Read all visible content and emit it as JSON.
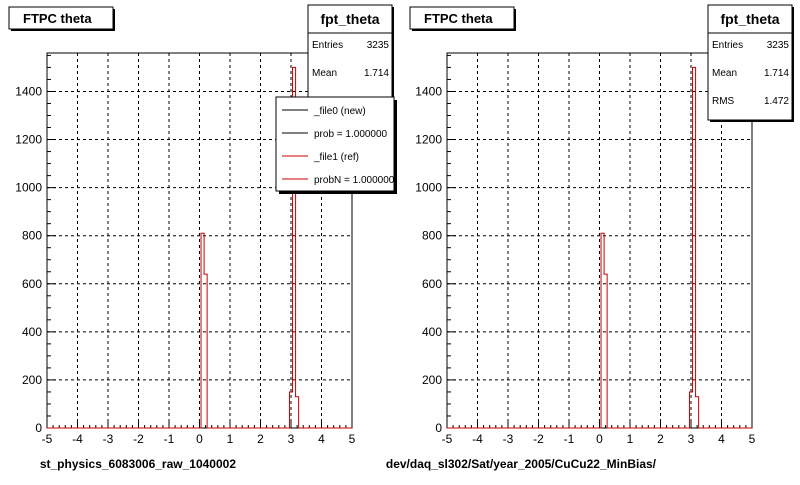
{
  "chart_data": [
    {
      "type": "histogram",
      "title": "FTPC theta",
      "xlabel": "st_physics_6083006_raw_1040002",
      "xlim": [
        -5,
        5
      ],
      "ylim": [
        0,
        1560
      ],
      "xticks": [
        -5,
        -4,
        -3,
        -2,
        -1,
        0,
        1,
        2,
        3,
        4,
        5
      ],
      "yticks": [
        0,
        200,
        400,
        600,
        800,
        1000,
        1200,
        1400
      ],
      "grid": true,
      "stats": {
        "name": "fpt_theta",
        "rows": [
          {
            "label": "Entries",
            "value": "3235"
          },
          {
            "label": "Mean",
            "value": "1.714"
          }
        ]
      },
      "legend": {
        "placement": "top-right",
        "entries": [
          {
            "label": "_file0 (new)",
            "color": "#000000"
          },
          {
            "label": "prob = 1.000000",
            "color": "#000000"
          },
          {
            "label": "_file1 (ref)",
            "color": "#cc0000"
          },
          {
            "label": "probN = 1.000000",
            "color": "#cc0000"
          }
        ]
      },
      "series": [
        {
          "name": "_file1 (ref)",
          "color": "#cc0000",
          "bins": [
            {
              "x0": -5.0,
              "x1": 0.05,
              "y": 0
            },
            {
              "x0": 0.05,
              "x1": 0.15,
              "y": 810
            },
            {
              "x0": 0.15,
              "x1": 0.25,
              "y": 640
            },
            {
              "x0": 0.25,
              "x1": 2.95,
              "y": 0
            },
            {
              "x0": 2.95,
              "x1": 3.05,
              "y": 150
            },
            {
              "x0": 3.05,
              "x1": 3.15,
              "y": 1500
            },
            {
              "x0": 3.15,
              "x1": 3.25,
              "y": 130
            },
            {
              "x0": 3.25,
              "x1": 5.0,
              "y": 0
            }
          ]
        }
      ]
    },
    {
      "type": "histogram",
      "title": "FTPC theta",
      "xlabel": "dev/daq_sl302/Sat/year_2005/CuCu22_MinBias/",
      "xlim": [
        -5,
        5
      ],
      "ylim": [
        0,
        1560
      ],
      "xticks": [
        -5,
        -4,
        -3,
        -2,
        -1,
        0,
        1,
        2,
        3,
        4,
        5
      ],
      "yticks": [
        0,
        200,
        400,
        600,
        800,
        1000,
        1200,
        1400
      ],
      "grid": true,
      "stats": {
        "name": "fpt_theta",
        "rows": [
          {
            "label": "Entries",
            "value": "3235"
          },
          {
            "label": "Mean",
            "value": "1.714"
          },
          {
            "label": "RMS",
            "value": "1.472"
          }
        ]
      },
      "series": [
        {
          "color": "#cc0000",
          "bins": [
            {
              "x0": -5.0,
              "x1": 0.05,
              "y": 0
            },
            {
              "x0": 0.05,
              "x1": 0.15,
              "y": 810
            },
            {
              "x0": 0.15,
              "x1": 0.25,
              "y": 640
            },
            {
              "x0": 0.25,
              "x1": 2.95,
              "y": 0
            },
            {
              "x0": 2.95,
              "x1": 3.05,
              "y": 150
            },
            {
              "x0": 3.05,
              "x1": 3.15,
              "y": 1500
            },
            {
              "x0": 3.15,
              "x1": 3.25,
              "y": 130
            },
            {
              "x0": 3.25,
              "x1": 5.0,
              "y": 0
            }
          ]
        }
      ]
    }
  ]
}
